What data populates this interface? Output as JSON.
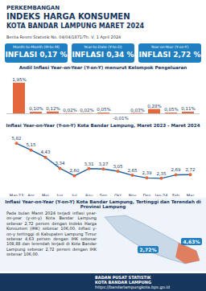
{
  "header": {
    "title_lines": [
      "PERKEMBANGAN",
      "INDEKS HARGA KONSUMEN",
      "KOTA BANDAR LAMPUNG MARET 2024"
    ],
    "subtitle": "Berita Resmi Statistik No. 04/04/1871/Th. V, 1 April 2024"
  },
  "indicators": [
    {
      "label": "Month-to-Month (M-to-M)",
      "title": "INFLASI",
      "value": "0,17",
      "unit": "%"
    },
    {
      "label": "Year-to-Date (Y-to-D)",
      "title": "INFLASI",
      "value": "0,34",
      "unit": "%"
    },
    {
      "label": "Year-on-Year (Y-on-Y)",
      "title": "INFLASI",
      "value": "2,72",
      "unit": "%"
    }
  ],
  "chart_data": [
    {
      "type": "bar",
      "title": "Andil Inflasi Year-on-Year (Y-on-Y) menurut Kelompok Pengeluaran",
      "categories": [
        null,
        null,
        null,
        null,
        null,
        null,
        null,
        null,
        null,
        null,
        null
      ],
      "values": [
        1.95,
        0.1,
        0.12,
        0.02,
        0.02,
        0.05,
        -0.01,
        0.03,
        0.28,
        0.05,
        0.11
      ],
      "value_labels": [
        "1,95%",
        "0,10%",
        "0,12%",
        "0,02%",
        "0,02%",
        "0,05%",
        "-0,01%",
        "0,03%",
        "0,28%",
        "0,05%",
        "0,11%"
      ],
      "color": "#e5683c",
      "ylim": [
        -0.15,
        2.2
      ],
      "data_labels": true,
      "tick_labels": false
    },
    {
      "type": "line",
      "title": "Inflasi Year-on-Year (Y-on-Y) Kota Bandar Lampung, Maret 2023 - Maret 2024",
      "categories": [
        "Mar-23",
        "Apr",
        "Mei",
        "Jun",
        "Jul",
        "Agu",
        "Sep",
        "Okt",
        "Nov",
        "Des",
        "Jan-24",
        "Feb",
        "Mar"
      ],
      "values": [
        5.82,
        5.15,
        4.43,
        3.34,
        2.6,
        3.31,
        3.27,
        3.05,
        2.65,
        2.39,
        2.35,
        2.69,
        2.72
      ],
      "value_labels": [
        "5,82",
        "5,15",
        "4,43",
        "3,34",
        "2,60",
        "3,31",
        "3,27",
        "3,05",
        "2,65",
        "2,39",
        "2,35",
        "2,69",
        "2,72"
      ],
      "color": "#1f5f9f",
      "marker": "circle",
      "ylim": [
        1.5,
        6.6
      ],
      "data_labels": true,
      "tick_labels": "x"
    }
  ],
  "map": {
    "title": "Inflasi Year-on-Year (Y-on-Y) Kota Bandar Lampung, Tertinggi dan Terendah di Provinsi Lampung",
    "text": "Pada bulan Maret 2024 terjadi inflasi year-on-year (y-on-y) Kota Bandar Lampung sebesar 2,72 persen dengan Indeks Harga Konsumen (IHK) sebesar 106,00. Inflasi y-on-y tertinggi di Kabupaten Lampung Timur sebesar 4,63 persen dengan IHK sebesar 108,88 dan terendah terjadi di Kota Bandar Lampung sebesar 2,72 persen dengan IHK sebesar 106,00.",
    "labels": [
      "2,72%",
      "4,63%"
    ]
  },
  "footer": {
    "org_lines": [
      "BADAN PUSAT STATISTIK",
      "KOTA BANDAR LAMPUNG"
    ],
    "url": "https://bandarlampungkota.bps.go.id"
  }
}
